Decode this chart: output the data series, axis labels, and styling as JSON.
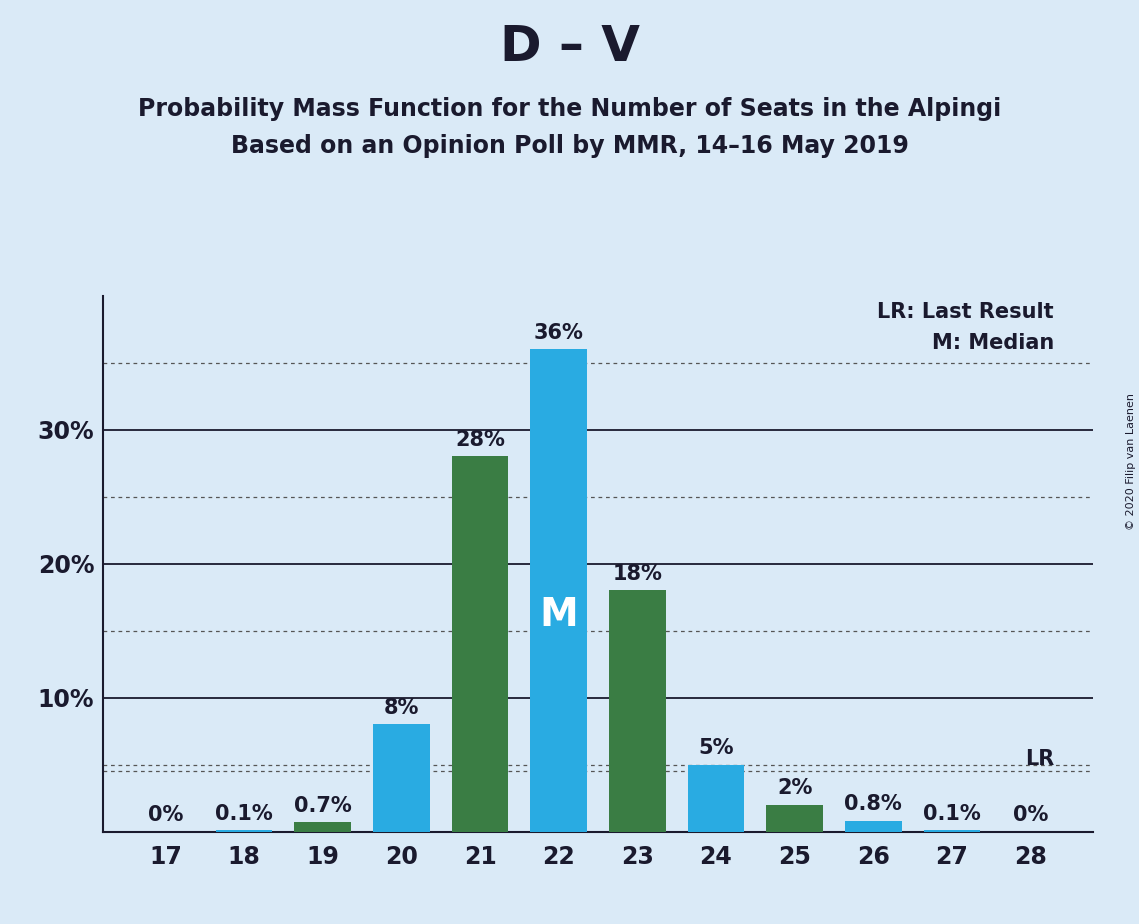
{
  "title": "D – V",
  "subtitle1": "Probability Mass Function for the Number of Seats in the Alpingi",
  "subtitle2": "Based on an Opinion Poll by MMR, 14–16 May 2019",
  "copyright": "© 2020 Filip van Laenen",
  "seats": [
    17,
    18,
    19,
    20,
    21,
    22,
    23,
    24,
    25,
    26,
    27,
    28
  ],
  "probabilities": [
    0.0,
    0.1,
    0.7,
    8.0,
    28.0,
    36.0,
    18.0,
    5.0,
    2.0,
    0.8,
    0.1,
    0.0
  ],
  "bar_colors": [
    "#29ABE2",
    "#29ABE2",
    "#3A7D44",
    "#29ABE2",
    "#3A7D44",
    "#29ABE2",
    "#3A7D44",
    "#29ABE2",
    "#3A7D44",
    "#29ABE2",
    "#29ABE2",
    "#29ABE2"
  ],
  "labels": [
    "0%",
    "0.1%",
    "0.7%",
    "8%",
    "28%",
    "36%",
    "18%",
    "5%",
    "2%",
    "0.8%",
    "0.1%",
    "0%"
  ],
  "median_seat": 22,
  "lr_value": 4.5,
  "lr_label": "LR",
  "legend_lr": "LR: Last Result",
  "legend_m": "M: Median",
  "ylim": [
    0,
    40
  ],
  "solid_grid": [
    10,
    20,
    30
  ],
  "dotted_grid": [
    5,
    15,
    25,
    35
  ],
  "background_color": "#DAEAF7",
  "plot_bg_color": "#DAEAF7",
  "bar_width": 0.72,
  "label_fontsize": 15,
  "tick_fontsize": 17,
  "title_fontsize": 36,
  "subtitle_fontsize": 17,
  "legend_fontsize": 15,
  "ytick_positions": [
    10,
    20,
    30
  ],
  "ytick_labels": [
    "10%",
    "20%",
    "30%"
  ]
}
